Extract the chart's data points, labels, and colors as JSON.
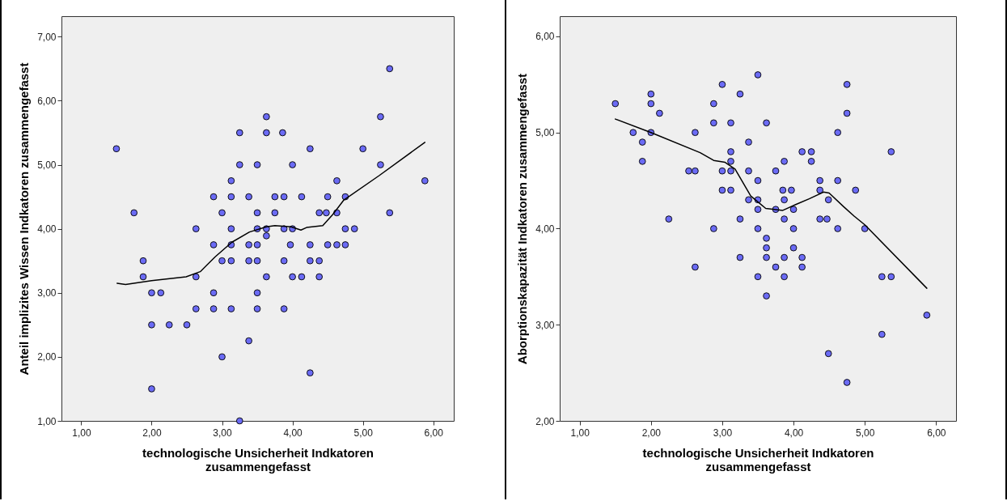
{
  "chart_data": [
    {
      "type": "scatter",
      "xlabel": "technologische Unsicherheit Indkatoren zusammengefasst",
      "ylabel": "Anteil implizites Wissen Indkatoren zusammengefasst",
      "xlim": [
        0.72,
        6.29
      ],
      "ylim": [
        1,
        7.32
      ],
      "xticks": [
        {
          "value": 1,
          "label": "1,00"
        },
        {
          "value": 2,
          "label": "2,00"
        },
        {
          "value": 3,
          "label": "3,00"
        },
        {
          "value": 4,
          "label": "4,00"
        },
        {
          "value": 5,
          "label": "5,00"
        },
        {
          "value": 6,
          "label": "6,00"
        }
      ],
      "yticks": [
        {
          "value": 1,
          "label": "1,00"
        },
        {
          "value": 2,
          "label": "2,00"
        },
        {
          "value": 3,
          "label": "3,00"
        },
        {
          "value": 4,
          "label": "4,00"
        },
        {
          "value": 5,
          "label": "5,00"
        },
        {
          "value": 6,
          "label": "6,00"
        },
        {
          "value": 7,
          "label": "7,00"
        }
      ],
      "grid": false,
      "marker": "circle",
      "series": [
        {
          "color": "#6b6bf5",
          "x": [
            1.5,
            1.75,
            2.63,
            2.88,
            3.0,
            3.13,
            3.13,
            3.13,
            3.25,
            3.25,
            3.38,
            3.5,
            3.5,
            3.5,
            3.63,
            3.63,
            3.63,
            3.75,
            3.75,
            3.86,
            3.88,
            3.88,
            4.0,
            4.0,
            4.13,
            4.25,
            4.38,
            4.48,
            4.5,
            4.63,
            4.63,
            4.75,
            4.75,
            4.88,
            5.0,
            5.25,
            5.25,
            5.38,
            5.38,
            5.88,
            3.63,
            2.88,
            3.13,
            3.38,
            3.5,
            3.97,
            4.25,
            4.5,
            4.63,
            4.75,
            1.88,
            3.0,
            3.13,
            3.38,
            3.5,
            3.88,
            4.25,
            4.38,
            1.88,
            2.63,
            3.63,
            4.0,
            4.13,
            4.38,
            2.0,
            2.13,
            2.88,
            3.5,
            2.63,
            2.88,
            3.13,
            3.5,
            3.88,
            2.0,
            2.25,
            2.5,
            3.38,
            3.0,
            4.25,
            2.0,
            3.25
          ],
          "values": [
            5.25,
            4.25,
            4.0,
            4.5,
            4.25,
            4.75,
            4.5,
            4.0,
            5.5,
            5.0,
            4.5,
            5.0,
            4.25,
            4.0,
            5.75,
            5.5,
            4.0,
            4.5,
            4.25,
            5.5,
            4.5,
            4.0,
            5.0,
            4.0,
            4.5,
            5.25,
            4.25,
            4.25,
            4.5,
            4.75,
            4.25,
            4.5,
            4.0,
            4.0,
            5.25,
            5.75,
            5.0,
            6.5,
            4.25,
            4.75,
            3.89,
            3.75,
            3.75,
            3.75,
            3.75,
            3.75,
            3.75,
            3.75,
            3.75,
            3.75,
            3.5,
            3.5,
            3.5,
            3.5,
            3.5,
            3.5,
            3.5,
            3.5,
            3.25,
            3.25,
            3.25,
            3.25,
            3.25,
            3.25,
            3.0,
            3.0,
            3.0,
            3.0,
            2.75,
            2.75,
            2.75,
            2.75,
            2.75,
            2.5,
            2.5,
            2.5,
            2.25,
            2.0,
            1.75,
            1.5,
            1.0
          ]
        },
        {
          "type": "line",
          "color": "#000000",
          "marker": "none",
          "line_style": "solid",
          "x": [
            1.51,
            1.63,
            2.0,
            2.49,
            2.69,
            2.9,
            3.14,
            3.39,
            3.63,
            3.75,
            3.98,
            4.12,
            4.2,
            4.43,
            4.57,
            4.73,
            5.23,
            5.88
          ],
          "values": [
            3.15,
            3.13,
            3.19,
            3.25,
            3.33,
            3.56,
            3.79,
            3.95,
            4.03,
            4.05,
            4.03,
            3.98,
            4.02,
            4.05,
            4.22,
            4.45,
            4.83,
            5.35
          ]
        }
      ]
    },
    {
      "type": "scatter",
      "xlabel": "technologische Unsicherheit Indkatoren zusammengefasst",
      "ylabel": "Aborptionskapazität Indkatoren zusammengefasst",
      "xlim": [
        0.72,
        6.28
      ],
      "ylim": [
        2,
        6.21
      ],
      "xticks": [
        {
          "value": 1,
          "label": "1,00"
        },
        {
          "value": 2,
          "label": "2,00"
        },
        {
          "value": 3,
          "label": "3,00"
        },
        {
          "value": 4,
          "label": "4,00"
        },
        {
          "value": 5,
          "label": "5,00"
        },
        {
          "value": 6,
          "label": "6,00"
        }
      ],
      "yticks": [
        {
          "value": 2,
          "label": "2,00"
        },
        {
          "value": 3,
          "label": "3,00"
        },
        {
          "value": 4,
          "label": "4,00"
        },
        {
          "value": 5,
          "label": "5,00"
        },
        {
          "value": 6,
          "label": "6,00"
        }
      ],
      "grid": false,
      "marker": "circle",
      "series": [
        {
          "color": "#6b6bf5",
          "x": [
            1.5,
            1.75,
            1.88,
            1.88,
            2.0,
            2.0,
            2.0,
            2.12,
            2.25,
            2.53,
            2.62,
            2.62,
            2.88,
            2.88,
            3.0,
            3.0,
            3.0,
            3.12,
            3.12,
            3.12,
            3.12,
            3.12,
            3.25,
            3.25,
            3.37,
            3.37,
            3.37,
            3.5,
            3.5,
            3.5,
            3.5,
            3.62,
            3.75,
            3.75,
            3.87,
            3.85,
            3.97,
            3.87,
            3.87,
            4.0,
            4.12,
            4.25,
            4.25,
            4.37,
            4.37,
            4.37,
            4.47,
            4.49,
            4.62,
            4.62,
            4.75,
            4.75,
            4.87,
            5.37,
            2.88,
            3.5,
            4.0,
            4.62,
            5.0,
            3.62,
            3.62,
            4.0,
            3.25,
            3.62,
            3.87,
            4.12,
            2.62,
            3.75,
            4.12,
            3.5,
            3.87,
            5.24,
            5.37,
            3.62,
            5.87,
            5.24,
            4.49,
            4.75
          ],
          "values": [
            5.3,
            5.0,
            4.9,
            4.7,
            5.4,
            5.3,
            5.0,
            5.2,
            4.1,
            4.6,
            4.6,
            5.0,
            5.3,
            5.1,
            5.5,
            4.6,
            4.4,
            5.1,
            4.8,
            4.7,
            4.6,
            4.4,
            5.4,
            4.1,
            4.9,
            4.6,
            4.3,
            5.6,
            4.5,
            4.3,
            4.2,
            5.1,
            4.6,
            4.2,
            4.7,
            4.4,
            4.4,
            4.3,
            4.1,
            4.2,
            4.8,
            4.8,
            4.7,
            4.5,
            4.4,
            4.1,
            4.1,
            4.3,
            5.0,
            4.5,
            5.5,
            5.2,
            4.4,
            4.8,
            4.0,
            4.0,
            4.0,
            4.0,
            4.0,
            3.9,
            3.8,
            3.8,
            3.7,
            3.7,
            3.7,
            3.7,
            3.6,
            3.6,
            3.6,
            3.5,
            3.5,
            3.5,
            3.5,
            3.3,
            3.1,
            2.9,
            2.7,
            2.4
          ]
        },
        {
          "type": "line",
          "color": "#000000",
          "marker": "none",
          "line_style": "solid",
          "x": [
            1.5,
            2.0,
            2.69,
            2.88,
            3.04,
            3.18,
            3.4,
            3.61,
            3.85,
            4.03,
            4.22,
            4.42,
            4.5,
            4.7,
            4.85,
            5.0,
            5.87
          ],
          "values": [
            5.14,
            5.0,
            4.79,
            4.71,
            4.69,
            4.62,
            4.34,
            4.21,
            4.19,
            4.25,
            4.31,
            4.38,
            4.37,
            4.23,
            4.13,
            4.04,
            3.38
          ]
        }
      ]
    }
  ]
}
